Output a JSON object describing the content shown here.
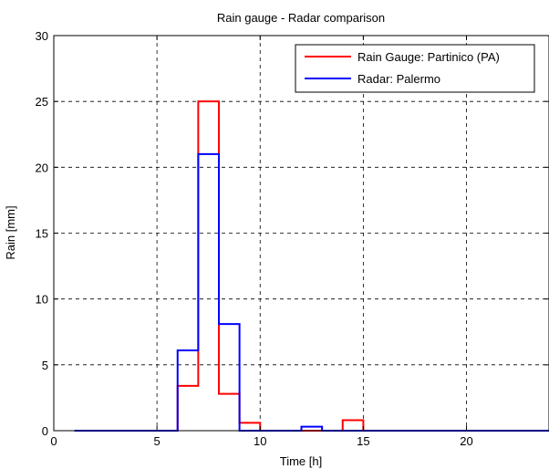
{
  "chart_data": {
    "type": "line",
    "step": true,
    "title": "Rain gauge - Radar comparison",
    "xlabel": "Time [h]",
    "ylabel": "Rain [mm]",
    "xlim": [
      0,
      24
    ],
    "ylim": [
      0,
      30
    ],
    "xticks": [
      0,
      5,
      10,
      15,
      20
    ],
    "yticks": [
      0,
      5,
      10,
      15,
      20,
      25,
      30
    ],
    "grid": true,
    "legend_position": "top-right",
    "x": [
      1,
      2,
      3,
      4,
      5,
      6,
      7,
      8,
      9,
      10,
      11,
      12,
      13,
      14,
      15,
      16,
      17,
      18,
      19,
      20,
      21,
      22,
      23,
      24
    ],
    "series": [
      {
        "name": "Rain Gauge: Partinico (PA)",
        "color": "#ff0000",
        "values": [
          0,
          0,
          0,
          0,
          0,
          3.4,
          25,
          2.8,
          0.6,
          0,
          0,
          0,
          0,
          0.8,
          0,
          0,
          0,
          0,
          0,
          0,
          0,
          0,
          0,
          0
        ]
      },
      {
        "name": "Radar: Palermo",
        "color": "#0000ff",
        "values": [
          0,
          0,
          0,
          0,
          0,
          6.1,
          21,
          8.1,
          0,
          0,
          0,
          0.3,
          0,
          0,
          0,
          0,
          0,
          0,
          0,
          0,
          0,
          0,
          0,
          0
        ]
      }
    ]
  }
}
